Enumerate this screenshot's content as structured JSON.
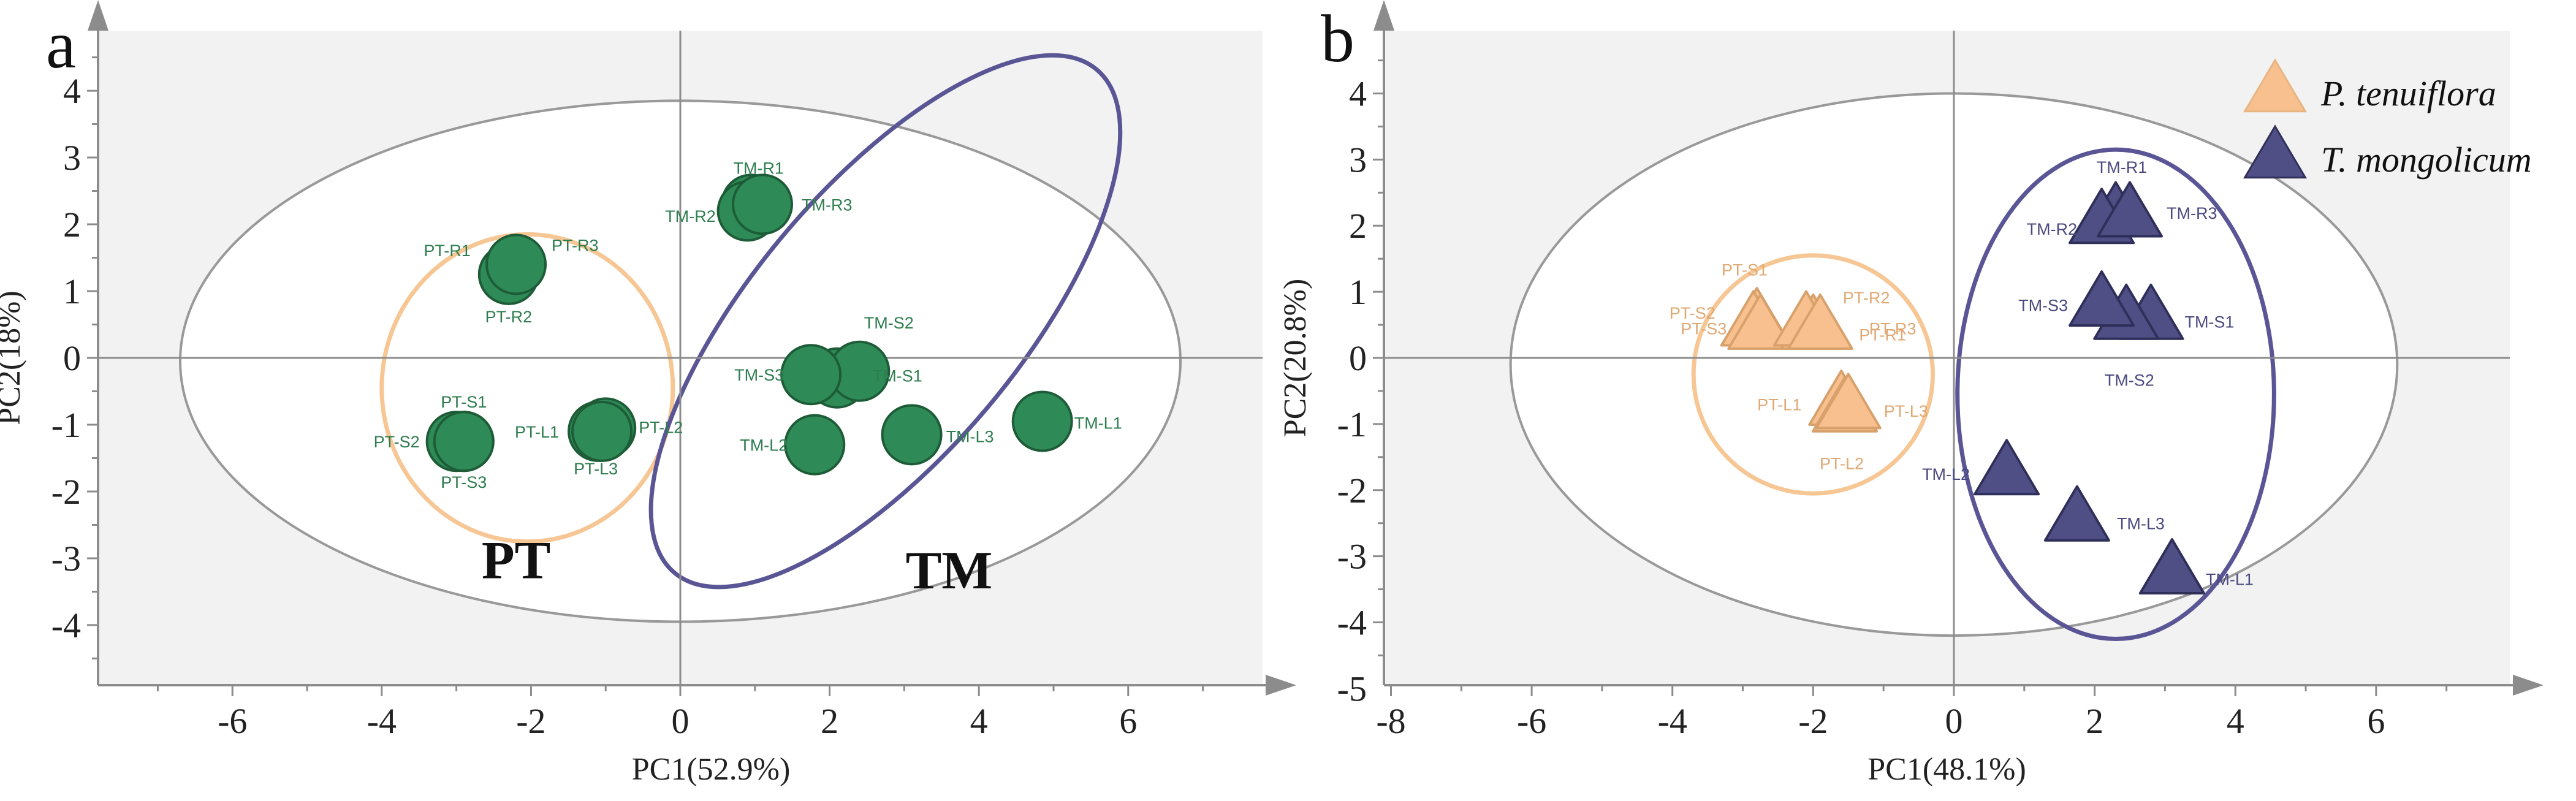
{
  "chart_data": [
    {
      "panel": "a",
      "type": "scatter",
      "xlabel": "PC1(52.9%)",
      "ylabel": "PC2(18%)",
      "xlim": [
        -7.8,
        7.8
      ],
      "ylim": [
        -4.9,
        4.9
      ],
      "xticks": [
        -6,
        -4,
        -2,
        0,
        2,
        4,
        6
      ],
      "yticks": [
        -4,
        -3,
        -2,
        -1,
        0,
        1,
        2,
        3,
        4
      ],
      "marker": "circle",
      "marker_color": "#2e8b57",
      "marker_edge": "#1d5c37",
      "label_color": "#2e7d4f",
      "points": [
        {
          "label": "PT-R1",
          "x": -2.3,
          "y": 1.25
        },
        {
          "label": "PT-R2",
          "x": -2.3,
          "y": 1.25
        },
        {
          "label": "PT-R3",
          "x": -2.2,
          "y": 1.4
        },
        {
          "label": "PT-S1",
          "x": -2.9,
          "y": -1.25
        },
        {
          "label": "PT-S2",
          "x": -3.0,
          "y": -1.25
        },
        {
          "label": "PT-S3",
          "x": -2.9,
          "y": -1.25
        },
        {
          "label": "PT-L1",
          "x": -1.1,
          "y": -1.1
        },
        {
          "label": "PT-L2",
          "x": -1.0,
          "y": -1.05
        },
        {
          "label": "PT-L3",
          "x": -1.05,
          "y": -1.1
        },
        {
          "label": "TM-R1",
          "x": 0.95,
          "y": 2.3
        },
        {
          "label": "TM-R2",
          "x": 0.9,
          "y": 2.2
        },
        {
          "label": "TM-R3",
          "x": 1.1,
          "y": 2.3
        },
        {
          "label": "TM-S1",
          "x": 2.1,
          "y": -0.3
        },
        {
          "label": "TM-S2",
          "x": 2.4,
          "y": -0.2
        },
        {
          "label": "TM-S3",
          "x": 1.75,
          "y": -0.25
        },
        {
          "label": "TM-L1",
          "x": 4.85,
          "y": -0.95
        },
        {
          "label": "TM-L2",
          "x": 1.8,
          "y": -1.3
        },
        {
          "label": "TM-L3",
          "x": 3.1,
          "y": -1.15
        }
      ],
      "ellipses": [
        {
          "name": "confidence",
          "cx": 0.0,
          "cy": -0.05,
          "rx": 6.7,
          "ry": 3.9,
          "angle": 0,
          "color": "#999999"
        },
        {
          "name": "PT",
          "cx": -2.05,
          "cy": -0.45,
          "rx": 1.95,
          "ry": 2.3,
          "angle": 0,
          "color": "#f6c794"
        },
        {
          "name": "TM",
          "cx": 2.75,
          "cy": 0.55,
          "rx": 4.4,
          "ry": 2.0,
          "angle": -50,
          "color": "#5a5696"
        }
      ],
      "group_labels": [
        {
          "text": "PT",
          "x": -2.2,
          "y": -3.3
        },
        {
          "text": "TM",
          "x": 3.6,
          "y": -3.45
        }
      ]
    },
    {
      "panel": "b",
      "type": "scatter",
      "xlabel": "PC1(48.1%)",
      "ylabel": "PC2(20.8%)",
      "xlim": [
        -8.1,
        7.9
      ],
      "ylim": [
        -4.95,
        4.95
      ],
      "xticks": [
        -8,
        -6,
        -4,
        -2,
        0,
        2,
        4,
        6
      ],
      "yticks": [
        -5,
        -4,
        -3,
        -2,
        -1,
        0,
        1,
        2,
        3,
        4
      ],
      "marker": "triangle",
      "legend": [
        {
          "name": "P. tenuiflora",
          "color": "#f8c08f"
        },
        {
          "name": "T. mongolicum",
          "color": "#4f4f85"
        }
      ],
      "points": [
        {
          "label": "PT-S1",
          "x": -2.8,
          "y": 0.55,
          "group": "PT"
        },
        {
          "label": "PT-S2",
          "x": -2.85,
          "y": 0.5,
          "group": "PT"
        },
        {
          "label": "PT-S3",
          "x": -2.75,
          "y": 0.45,
          "group": "PT"
        },
        {
          "label": "PT-R1",
          "x": -2.0,
          "y": 0.45,
          "group": "PT"
        },
        {
          "label": "PT-R2",
          "x": -2.1,
          "y": 0.5,
          "group": "PT"
        },
        {
          "label": "PT-R3",
          "x": -1.9,
          "y": 0.45,
          "group": "PT"
        },
        {
          "label": "PT-L1",
          "x": -1.6,
          "y": -0.7,
          "group": "PT"
        },
        {
          "label": "PT-L2",
          "x": -1.55,
          "y": -0.8,
          "group": "PT"
        },
        {
          "label": "PT-L3",
          "x": -1.5,
          "y": -0.75,
          "group": "PT"
        },
        {
          "label": "TM-R1",
          "x": 2.3,
          "y": 2.15,
          "group": "TM"
        },
        {
          "label": "TM-R2",
          "x": 2.1,
          "y": 2.05,
          "group": "TM"
        },
        {
          "label": "TM-R3",
          "x": 2.5,
          "y": 2.15,
          "group": "TM"
        },
        {
          "label": "TM-S1",
          "x": 2.8,
          "y": 0.6,
          "group": "TM"
        },
        {
          "label": "TM-S2",
          "x": 2.45,
          "y": 0.6,
          "group": "TM"
        },
        {
          "label": "TM-S3",
          "x": 2.1,
          "y": 0.8,
          "group": "TM"
        },
        {
          "label": "TM-L1",
          "x": 3.1,
          "y": -3.25,
          "group": "TM"
        },
        {
          "label": "TM-L2",
          "x": 0.75,
          "y": -1.75,
          "group": "TM"
        },
        {
          "label": "TM-L3",
          "x": 1.75,
          "y": -2.45,
          "group": "TM"
        }
      ],
      "ellipses": [
        {
          "name": "confidence",
          "cx": 0.0,
          "cy": -0.1,
          "rx": 6.3,
          "ry": 4.1,
          "angle": 0,
          "color": "#999999"
        },
        {
          "name": "PT",
          "cx": -2.0,
          "cy": -0.25,
          "rx": 1.7,
          "ry": 1.8,
          "angle": 0,
          "color": "#f6c794"
        },
        {
          "name": "TM",
          "cx": 2.3,
          "cy": -0.55,
          "rx": 2.25,
          "ry": 3.7,
          "angle": 0,
          "color": "#5a5696"
        }
      ]
    }
  ],
  "panel_letters": [
    "a",
    "b"
  ]
}
